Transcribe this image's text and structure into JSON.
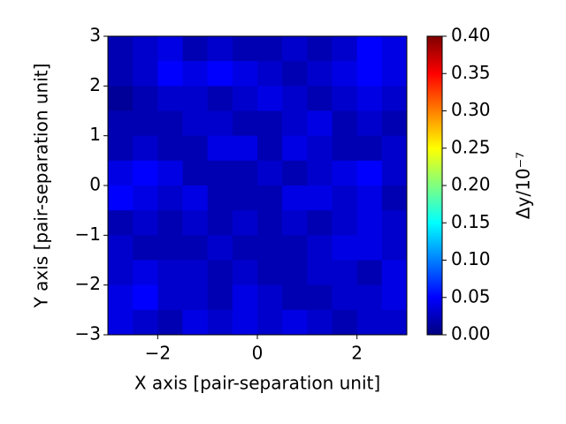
{
  "chart_data": {
    "type": "heatmap",
    "xlabel": "X axis [pair-separation unit]",
    "ylabel": "Y axis [pair-separation unit]",
    "xlim": [
      -3,
      3
    ],
    "ylim": [
      -3,
      3
    ],
    "xticks": [
      {
        "value": -2,
        "label": "−2"
      },
      0,
      2
    ],
    "yticks": [
      {
        "value": -3,
        "label": "−3"
      },
      {
        "value": -2,
        "label": "−2"
      },
      {
        "value": -1,
        "label": "−1"
      },
      0,
      1,
      2,
      3
    ],
    "z": [
      [
        0.02,
        0.03,
        0.04,
        0.02,
        0.03,
        0.02,
        0.02,
        0.03,
        0.02,
        0.03,
        0.05,
        0.04
      ],
      [
        0.02,
        0.03,
        0.05,
        0.04,
        0.05,
        0.04,
        0.03,
        0.02,
        0.03,
        0.04,
        0.05,
        0.04
      ],
      [
        0.01,
        0.02,
        0.03,
        0.03,
        0.02,
        0.03,
        0.04,
        0.03,
        0.02,
        0.03,
        0.04,
        0.03
      ],
      [
        0.02,
        0.02,
        0.02,
        0.03,
        0.03,
        0.02,
        0.02,
        0.03,
        0.04,
        0.02,
        0.03,
        0.02
      ],
      [
        0.02,
        0.03,
        0.02,
        0.02,
        0.04,
        0.04,
        0.02,
        0.04,
        0.03,
        0.02,
        0.02,
        0.03
      ],
      [
        0.04,
        0.05,
        0.04,
        0.02,
        0.02,
        0.02,
        0.03,
        0.02,
        0.03,
        0.04,
        0.05,
        0.03
      ],
      [
        0.05,
        0.04,
        0.03,
        0.04,
        0.02,
        0.02,
        0.02,
        0.04,
        0.04,
        0.03,
        0.04,
        0.02
      ],
      [
        0.02,
        0.03,
        0.02,
        0.03,
        0.02,
        0.03,
        0.02,
        0.03,
        0.02,
        0.03,
        0.04,
        0.03
      ],
      [
        0.03,
        0.02,
        0.02,
        0.02,
        0.03,
        0.02,
        0.02,
        0.02,
        0.03,
        0.04,
        0.04,
        0.03
      ],
      [
        0.03,
        0.04,
        0.03,
        0.03,
        0.02,
        0.03,
        0.02,
        0.02,
        0.03,
        0.03,
        0.02,
        0.04
      ],
      [
        0.04,
        0.05,
        0.03,
        0.03,
        0.02,
        0.04,
        0.03,
        0.02,
        0.02,
        0.03,
        0.03,
        0.04
      ],
      [
        0.04,
        0.03,
        0.02,
        0.04,
        0.03,
        0.04,
        0.03,
        0.04,
        0.03,
        0.02,
        0.03,
        0.03
      ]
    ],
    "colormap": "jet",
    "clim": [
      0,
      0.4
    ],
    "colorbar_label": "Δy/10⁻⁷",
    "colorbar_ticks": [
      {
        "value": 0,
        "label": "0.00"
      },
      {
        "value": 0.05,
        "label": "0.05"
      },
      {
        "value": 0.1,
        "label": "0.10"
      },
      {
        "value": 0.15,
        "label": "0.15"
      },
      {
        "value": 0.2,
        "label": "0.20"
      },
      {
        "value": 0.25,
        "label": "0.25"
      },
      {
        "value": 0.3,
        "label": "0.30"
      },
      {
        "value": 0.35,
        "label": "0.35"
      },
      {
        "value": 0.4,
        "label": "0.40"
      }
    ]
  }
}
